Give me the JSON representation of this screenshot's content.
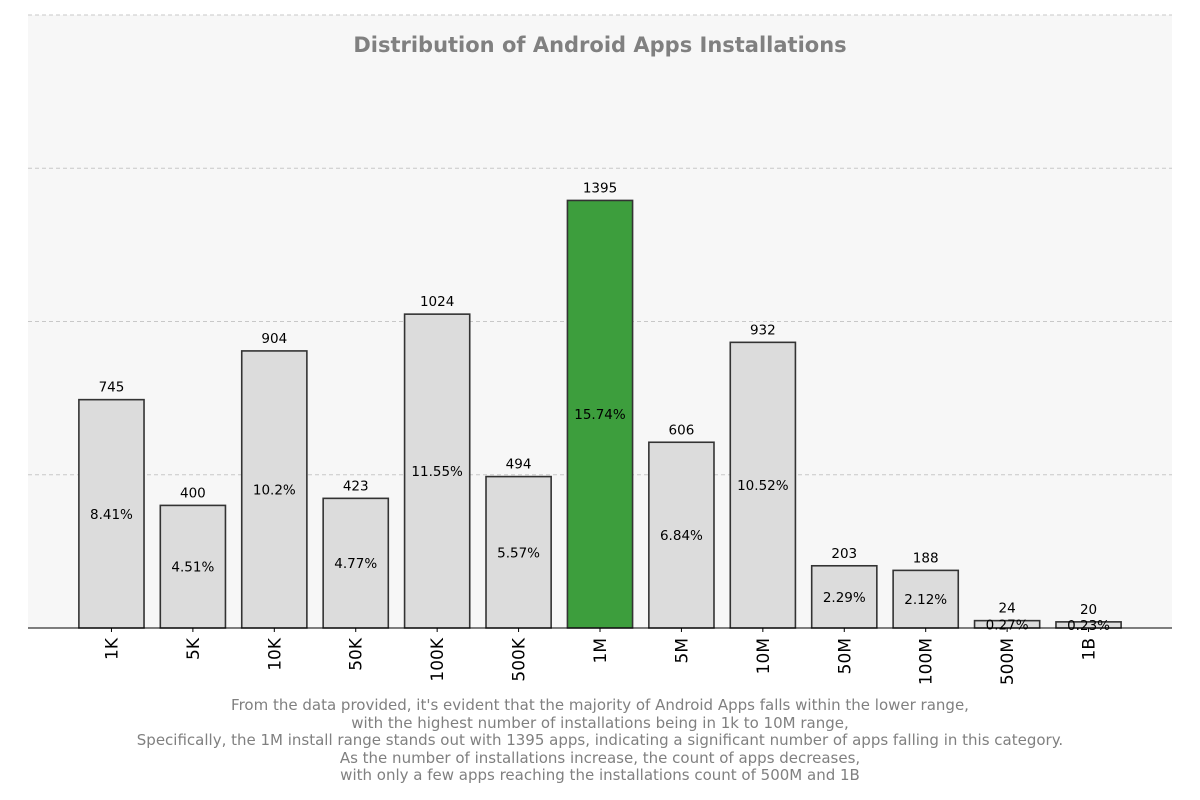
{
  "chart_data": {
    "type": "bar",
    "title": "Distribution of Android Apps Installations",
    "xlabel": "",
    "ylabel": "",
    "categories": [
      "1K",
      "5K",
      "10K",
      "50K",
      "100K",
      "500K",
      "1M",
      "5M",
      "10M",
      "50M",
      "100M",
      "500M",
      "1B"
    ],
    "values": [
      745,
      400,
      904,
      423,
      1024,
      494,
      1395,
      606,
      932,
      203,
      188,
      24,
      20
    ],
    "percent_labels": [
      "8.41%",
      "4.51%",
      "10.2%",
      "4.77%",
      "11.55%",
      "5.57%",
      "15.74%",
      "6.84%",
      "10.52%",
      "2.29%",
      "2.12%",
      "0.27%",
      "0.23%"
    ],
    "highlight_category": "1M",
    "ylim": [
      0,
      2000
    ],
    "yticks": [
      0,
      500,
      1000,
      1500,
      2000
    ],
    "grid": "horizontal dashed",
    "y_tick_labels_visible": false,
    "colors": {
      "bar": "#dcdcdc",
      "highlight": "#3d9e3d",
      "edge": "#333333",
      "background": "#f7f7f7",
      "grid": "#c8c8c8",
      "title": "#808080",
      "caption": "#808080"
    }
  },
  "caption_lines": [
    "From the data provided, it's evident that the majority of Android Apps falls within the lower range,",
    "with the highest number of installations being in 1k to 10M range,",
    "Specifically, the 1M install range stands out with 1395 apps, indicating a significant number of apps falling in this category.",
    "As the number of installations increase, the count of apps decreases,",
    "with only a few apps reaching the installations count of 500M and 1B"
  ]
}
